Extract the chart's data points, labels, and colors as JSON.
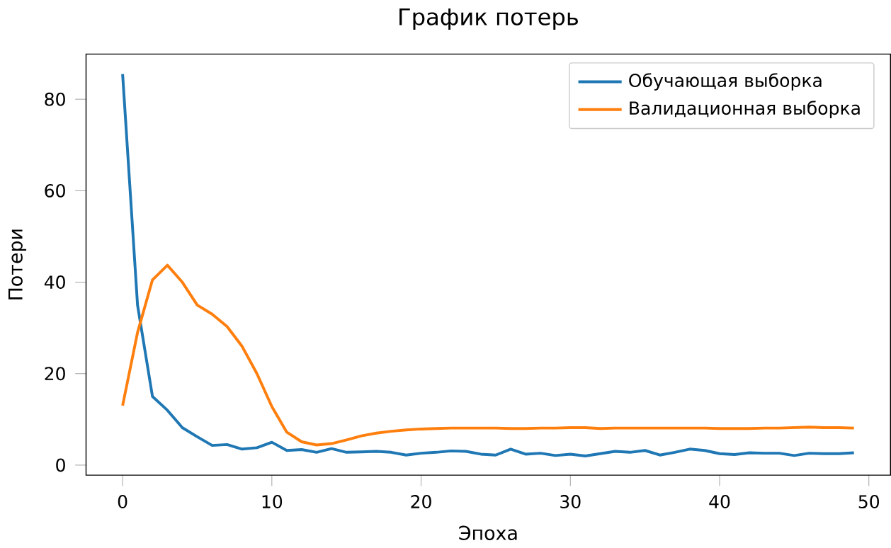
{
  "chart_data": {
    "type": "line",
    "title": "График потерь",
    "xlabel": "Эпоха",
    "ylabel": "Потери",
    "x": [
      0,
      1,
      2,
      3,
      4,
      5,
      6,
      7,
      8,
      9,
      10,
      11,
      12,
      13,
      14,
      15,
      16,
      17,
      18,
      19,
      20,
      21,
      22,
      23,
      24,
      25,
      26,
      27,
      28,
      29,
      30,
      31,
      32,
      33,
      34,
      35,
      36,
      37,
      38,
      39,
      40,
      41,
      42,
      43,
      44,
      45,
      46,
      47,
      48,
      49
    ],
    "series": [
      {
        "name": "Обучающая выборка",
        "color": "#1f77b4",
        "values": [
          85.5,
          35,
          15,
          12,
          8.2,
          6.2,
          4.3,
          4.5,
          3.5,
          3.8,
          5.0,
          3.2,
          3.4,
          2.8,
          3.6,
          2.8,
          2.9,
          3.0,
          2.8,
          2.2,
          2.6,
          2.8,
          3.1,
          3.0,
          2.4,
          2.2,
          3.5,
          2.4,
          2.6,
          2.1,
          2.4,
          2.0,
          2.5,
          3.0,
          2.8,
          3.2,
          2.2,
          2.8,
          3.5,
          3.2,
          2.5,
          2.3,
          2.7,
          2.6,
          2.6,
          2.1,
          2.6,
          2.5,
          2.5,
          2.7
        ]
      },
      {
        "name": "Валидационная выборка",
        "color": "#ff7f0e",
        "values": [
          13,
          29,
          40.5,
          43.7,
          40,
          35,
          33,
          30.3,
          26,
          20,
          12.8,
          7.2,
          5.1,
          4.4,
          4.7,
          5.5,
          6.4,
          7,
          7.4,
          7.7,
          7.9,
          8.0,
          8.1,
          8.1,
          8.1,
          8.1,
          8.0,
          8.0,
          8.1,
          8.1,
          8.2,
          8.2,
          8.0,
          8.1,
          8.1,
          8.1,
          8.1,
          8.1,
          8.1,
          8.1,
          8.0,
          8.0,
          8.0,
          8.1,
          8.1,
          8.2,
          8.3,
          8.2,
          8.2,
          8.1
        ]
      }
    ],
    "xlim": [
      -2.45,
      51.45
    ],
    "ylim": [
      -2.2,
      89.9
    ],
    "xticks": [
      0,
      10,
      20,
      30,
      40,
      50
    ],
    "yticks": [
      0,
      20,
      40,
      60,
      80
    ],
    "grid": false,
    "legend": "top right",
    "marker": "none",
    "line_style": "solid"
  }
}
